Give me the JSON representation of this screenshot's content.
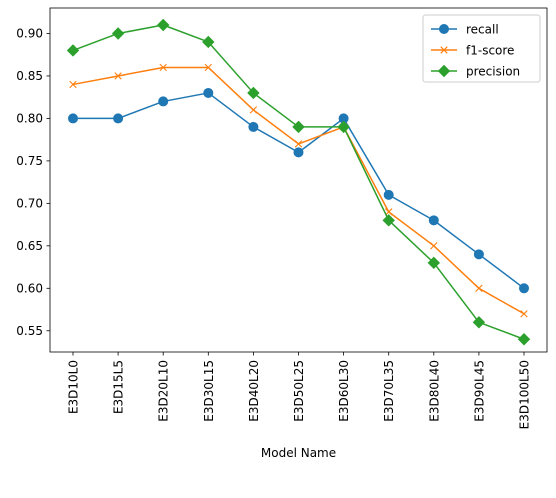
{
  "chart_data": {
    "type": "line",
    "title": "",
    "xlabel": "Model Name",
    "ylabel": "",
    "categories": [
      "E3D10L0",
      "E3D15L5",
      "E3D20L10",
      "E3D30L15",
      "E3D40L20",
      "E3D50L25",
      "E3D60L30",
      "E3D70L35",
      "E3D80L40",
      "E3D90L45",
      "E3D100L50"
    ],
    "ylim": [
      0.525,
      0.93
    ],
    "yticks": [
      "0.55",
      "0.60",
      "0.65",
      "0.70",
      "0.75",
      "0.80",
      "0.85",
      "0.90"
    ],
    "grid": false,
    "legend_position": "top-right",
    "series": [
      {
        "name": "recall",
        "color": "#1f77b4",
        "marker": "circle",
        "values": [
          0.8,
          0.8,
          0.82,
          0.83,
          0.79,
          0.76,
          0.8,
          0.71,
          0.68,
          0.64,
          0.6
        ]
      },
      {
        "name": "f1-score",
        "color": "#ff7f0e",
        "marker": "x",
        "values": [
          0.84,
          0.85,
          0.86,
          0.86,
          0.81,
          0.77,
          0.79,
          0.69,
          0.65,
          0.6,
          0.57
        ]
      },
      {
        "name": "precision",
        "color": "#2ca02c",
        "marker": "diamond",
        "values": [
          0.88,
          0.9,
          0.91,
          0.89,
          0.83,
          0.79,
          0.79,
          0.68,
          0.63,
          0.56,
          0.54
        ]
      }
    ]
  }
}
